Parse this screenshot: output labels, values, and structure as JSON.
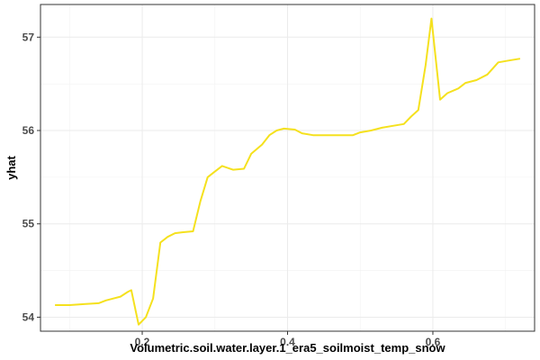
{
  "chart_data": {
    "type": "line",
    "title": "",
    "xlabel": "Volumetric.soil.water.layer.1_era5_soilmoist_temp_snow",
    "ylabel": "yhat",
    "xlim": [
      0.06,
      0.74
    ],
    "ylim": [
      53.85,
      57.35
    ],
    "x_ticks": [
      0.2,
      0.4,
      0.6
    ],
    "x_tick_labels": [
      "0.2",
      "0.4",
      "0.6"
    ],
    "y_ticks": [
      54,
      55,
      56,
      57
    ],
    "y_tick_labels": [
      "54",
      "55",
      "56",
      "57"
    ],
    "grid": true,
    "legend": "none",
    "series": [
      {
        "color": "#f5e11e",
        "x": [
          0.08,
          0.1,
          0.12,
          0.14,
          0.15,
          0.17,
          0.18,
          0.185,
          0.195,
          0.205,
          0.215,
          0.225,
          0.235,
          0.245,
          0.255,
          0.27,
          0.28,
          0.29,
          0.3,
          0.31,
          0.325,
          0.34,
          0.35,
          0.365,
          0.375,
          0.385,
          0.395,
          0.41,
          0.42,
          0.435,
          0.45,
          0.47,
          0.49,
          0.5,
          0.515,
          0.53,
          0.545,
          0.56,
          0.57,
          0.58,
          0.59,
          0.598,
          0.61,
          0.62,
          0.635,
          0.645,
          0.66,
          0.675,
          0.69,
          0.705,
          0.72
        ],
        "y": [
          54.13,
          54.13,
          54.14,
          54.15,
          54.18,
          54.22,
          54.27,
          54.29,
          53.92,
          54.0,
          54.2,
          54.8,
          54.86,
          54.9,
          54.91,
          54.92,
          55.24,
          55.5,
          55.56,
          55.62,
          55.58,
          55.59,
          55.75,
          55.85,
          55.95,
          56.0,
          56.02,
          56.01,
          55.97,
          55.95,
          55.95,
          55.95,
          55.95,
          55.98,
          56.0,
          56.03,
          56.05,
          56.07,
          56.15,
          56.22,
          56.7,
          57.2,
          56.33,
          56.4,
          56.45,
          56.51,
          56.54,
          56.6,
          56.73,
          56.75,
          56.77
        ]
      }
    ]
  }
}
